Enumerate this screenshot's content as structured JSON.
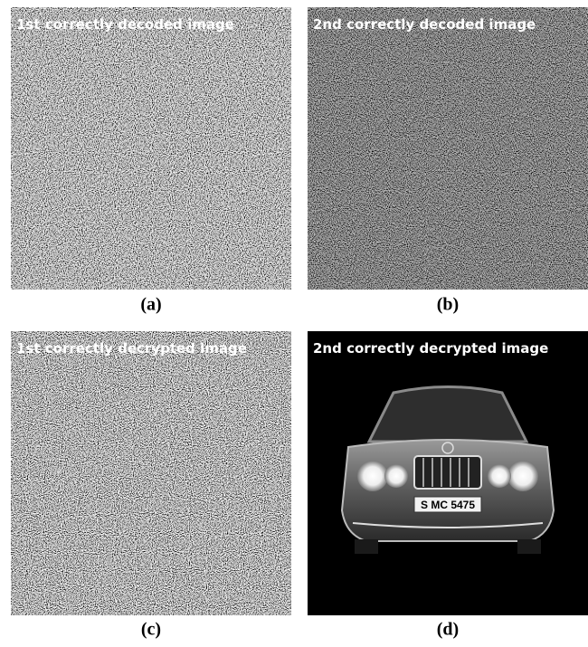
{
  "panels": [
    {
      "title": "1st correctly decoded image",
      "label": "(a)"
    },
    {
      "title": "2nd correctly decoded image",
      "label": "(b)"
    },
    {
      "title": "1st correctly decrypted  image",
      "label": "(c)"
    },
    {
      "title": "2nd correctly decrypted image",
      "label": "(d)",
      "plate": "S MC 5475"
    }
  ]
}
